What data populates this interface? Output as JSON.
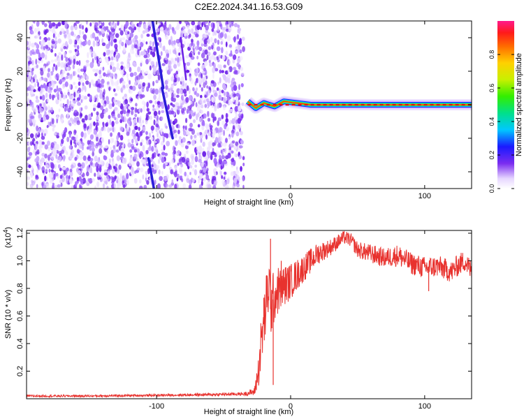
{
  "title": "C2E2.2024.341.16.53.G09",
  "colors": {
    "line": "#e8322e",
    "spectrogram_noise": "#7a2cf0",
    "spectrogram_track": "#2a1cd8",
    "axis": "#000000"
  },
  "colorbar": {
    "label": "Normalized spectral amplitude",
    "ticks": [
      "0.0",
      "0.2",
      "0.4",
      "0.6",
      "0.8"
    ],
    "tick_values": [
      0.0,
      0.2,
      0.4,
      0.6,
      0.8
    ],
    "range": [
      0,
      1
    ],
    "colormap": "rainbow (purple → red → magenta)"
  },
  "chart_data": [
    {
      "type": "heatmap",
      "name": "spectrogram",
      "xlabel": "Height of straight line (km)",
      "ylabel": "Frequency (Hz)",
      "xlim": [
        -197,
        135
      ],
      "ylim": [
        -50,
        50
      ],
      "xticks": [
        -100,
        0,
        100
      ],
      "yticks": [
        -40,
        -20,
        0,
        20,
        40
      ],
      "xtick_labels": [
        "-100",
        "0",
        "100"
      ],
      "ytick_labels": [
        "-40",
        "-20",
        "0",
        "20",
        "40"
      ],
      "noise_region_x": [
        -197,
        -35
      ],
      "diagonal_tracks": [
        {
          "from": [
            -103,
            50
          ],
          "to": [
            -95,
            10
          ]
        },
        {
          "from": [
            -96,
            10
          ],
          "to": [
            -88,
            -20
          ]
        },
        {
          "from": [
            -106,
            -32
          ],
          "to": [
            -102,
            -50
          ]
        },
        {
          "from": [
            -82,
            40
          ],
          "to": [
            -78,
            15
          ]
        }
      ],
      "signal_band": {
        "x_start": -35,
        "x_end": 135,
        "frequency": 0
      },
      "signal_wobbles": [
        {
          "x": -32,
          "f": 2
        },
        {
          "x": -26,
          "f": -2
        },
        {
          "x": -20,
          "f": 1
        },
        {
          "x": -12,
          "f": -1
        },
        {
          "x": -5,
          "f": 2
        },
        {
          "x": 5,
          "f": 1
        },
        {
          "x": 15,
          "f": 0
        },
        {
          "x": 40,
          "f": 0
        },
        {
          "x": 135,
          "f": 0
        }
      ]
    },
    {
      "type": "line",
      "name": "snr",
      "xlabel": "Height of straight line (km)",
      "ylabel": "SNR (10 * v/v)",
      "multiplier_label": "(x10",
      "multiplier_exp": "4",
      "xlim": [
        -197,
        135
      ],
      "ylim": [
        0.0,
        1.22
      ],
      "xticks": [
        -100,
        0,
        100
      ],
      "yticks": [
        0.2,
        0.4,
        0.6,
        0.8,
        1.0,
        1.2
      ],
      "xtick_labels": [
        "-100",
        "0",
        "100"
      ],
      "ytick_labels": [
        "0.2",
        "0.4",
        "0.6",
        "0.8",
        "1.0",
        "1.2"
      ],
      "series": [
        {
          "x": [
            -197,
            -150,
            -100,
            -60,
            -35,
            -27,
            -24,
            -22,
            -20,
            -18,
            -16,
            -15,
            -13,
            -10,
            -5,
            0,
            10,
            20,
            30,
            40,
            45,
            50,
            60,
            70,
            80,
            90,
            100,
            110,
            120,
            125,
            130,
            135
          ],
          "y": [
            0.02,
            0.02,
            0.025,
            0.03,
            0.035,
            0.05,
            0.2,
            0.4,
            0.55,
            0.7,
            0.85,
            0.65,
            0.72,
            0.78,
            0.82,
            0.85,
            0.95,
            1.05,
            1.1,
            1.17,
            1.15,
            1.08,
            1.05,
            1.02,
            1.04,
            0.98,
            0.95,
            0.96,
            0.92,
            0.97,
            1.0,
            0.92
          ],
          "noise_amplitude": [
            0.008,
            0.008,
            0.008,
            0.01,
            0.012,
            0.03,
            0.12,
            0.2,
            0.22,
            0.22,
            0.25,
            0.22,
            0.2,
            0.18,
            0.15,
            0.13,
            0.1,
            0.08,
            0.06,
            0.05,
            0.05,
            0.06,
            0.07,
            0.07,
            0.08,
            0.08,
            0.08,
            0.08,
            0.08,
            0.08,
            0.08,
            0.08
          ],
          "spikes": [
            {
              "x": -15,
              "y": 1.16
            },
            {
              "x": -20,
              "y": 0.73
            },
            {
              "x": -13,
              "y": 0.1
            },
            {
              "x": -7,
              "y": 1.0
            },
            {
              "x": 39,
              "y": 1.2
            },
            {
              "x": 103,
              "y": 0.78
            }
          ]
        }
      ]
    }
  ]
}
